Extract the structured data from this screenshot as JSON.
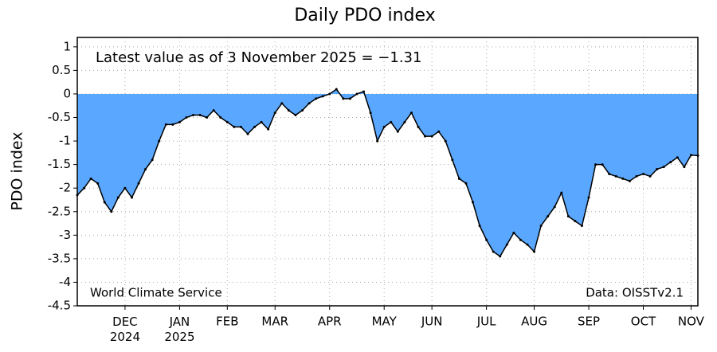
{
  "chart_data": {
    "type": "area",
    "title": "Daily PDO index",
    "ylabel": "PDO index",
    "annotations": [
      "Latest value as of 3 November 2025 = −1.31",
      "World Climate Service",
      "Data: OISSTv2.1"
    ],
    "categories": [
      null,
      null,
      null,
      null,
      null,
      null,
      null,
      "DEC 2024",
      null,
      null,
      null,
      null,
      null,
      null,
      null,
      "JAN 2025",
      null,
      null,
      null,
      null,
      null,
      null,
      "FEB",
      null,
      null,
      null,
      null,
      null,
      null,
      "MAR",
      null,
      null,
      null,
      null,
      null,
      null,
      null,
      "APR",
      null,
      null,
      null,
      null,
      null,
      null,
      null,
      "MAY",
      null,
      null,
      null,
      null,
      null,
      null,
      "JUN",
      null,
      null,
      null,
      null,
      null,
      null,
      null,
      "JUL",
      null,
      null,
      null,
      null,
      null,
      null,
      "AUG",
      null,
      null,
      null,
      null,
      null,
      null,
      null,
      "SEP",
      null,
      null,
      null,
      null,
      null,
      null,
      null,
      "OCT",
      null,
      null,
      null,
      null,
      null,
      null,
      "NOV",
      null
    ],
    "series": [
      {
        "name": "PDO index",
        "color": "#5aa7ff",
        "values": [
          -2.15,
          -2.0,
          -1.8,
          -1.9,
          -2.3,
          -2.5,
          -2.2,
          -2.0,
          -2.2,
          -1.9,
          -1.6,
          -1.4,
          -1.0,
          -0.65,
          -0.65,
          -0.6,
          -0.5,
          -0.45,
          -0.45,
          -0.5,
          -0.35,
          -0.5,
          -0.6,
          -0.7,
          -0.7,
          -0.85,
          -0.7,
          -0.6,
          -0.75,
          -0.4,
          -0.2,
          -0.35,
          -0.45,
          -0.35,
          -0.2,
          -0.1,
          -0.05,
          0.0,
          0.1,
          -0.1,
          -0.1,
          0.0,
          0.05,
          -0.4,
          -1.0,
          -0.7,
          -0.6,
          -0.8,
          -0.6,
          -0.4,
          -0.7,
          -0.9,
          -0.9,
          -0.8,
          -1.0,
          -1.4,
          -1.8,
          -1.9,
          -2.3,
          -2.8,
          -3.1,
          -3.35,
          -3.45,
          -3.2,
          -2.95,
          -3.1,
          -3.2,
          -3.35,
          -2.8,
          -2.6,
          -2.4,
          -2.1,
          -2.6,
          -2.7,
          -2.8,
          -2.2,
          -1.5,
          -1.5,
          -1.7,
          -1.75,
          -1.8,
          -1.85,
          -1.75,
          -1.7,
          -1.75,
          -1.6,
          -1.55,
          -1.45,
          -1.35,
          -1.55,
          -1.3,
          -1.31
        ]
      }
    ],
    "ylim": [
      -4.5,
      1.2
    ],
    "yticks": [
      1,
      0.5,
      0,
      -0.5,
      -1,
      -1.5,
      -2,
      -2.5,
      -3,
      -3.5,
      -4,
      -4.5
    ],
    "grid": true
  }
}
